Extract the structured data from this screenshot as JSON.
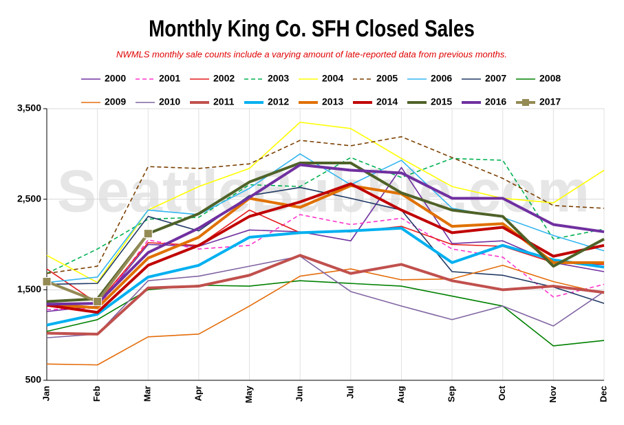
{
  "chart_data": {
    "type": "line",
    "title": "Monthly King Co. SFH Closed Sales",
    "subtitle": "NWMLS monthly sale counts include a varying amount of late-reported  data from previous months.",
    "watermark": "SeattleBubble.com",
    "categories": [
      "Jan",
      "Feb",
      "Mar",
      "Apr",
      "May",
      "Jun",
      "Jul",
      "Aug",
      "Sep",
      "Oct",
      "Nov",
      "Dec"
    ],
    "ylim": [
      500,
      3500
    ],
    "yticks": [
      {
        "value": 500,
        "label": "500"
      },
      {
        "value": 1500,
        "label": "1,500"
      },
      {
        "value": 2500,
        "label": "2,500"
      },
      {
        "value": 3500,
        "label": "3,500"
      }
    ],
    "grid": true,
    "legend": "top",
    "series": [
      {
        "name": "2000",
        "color": "#7030a0",
        "style": "solid",
        "values": [
          1260,
          1320,
          2000,
          1980,
          2160,
          2140,
          2040,
          2850,
          2010,
          2040,
          1800,
          1700
        ]
      },
      {
        "name": "2001",
        "color": "#ff33cc",
        "style": "dashed",
        "values": [
          1280,
          1300,
          2050,
          1950,
          1990,
          2330,
          2220,
          2290,
          1950,
          1860,
          1420,
          1560
        ]
      },
      {
        "name": "2002",
        "color": "#e41a1c",
        "style": "solid",
        "values": [
          1730,
          1350,
          2020,
          1990,
          2380,
          2130,
          2140,
          2200,
          2000,
          1980,
          1800,
          1780
        ]
      },
      {
        "name": "2003",
        "color": "#00b050",
        "style": "dashed",
        "values": [
          1680,
          1950,
          2280,
          2300,
          2660,
          2640,
          2960,
          2740,
          2950,
          2930,
          2060,
          2170
        ]
      },
      {
        "name": "2004",
        "color": "#ffff00",
        "style": "solid",
        "values": [
          1880,
          1580,
          2380,
          2640,
          2840,
          3350,
          3280,
          2950,
          2640,
          2510,
          2460,
          2820
        ]
      },
      {
        "name": "2005",
        "color": "#7b3f00",
        "style": "dashed",
        "values": [
          1680,
          1760,
          2860,
          2840,
          2890,
          3150,
          3090,
          3190,
          2960,
          2730,
          2430,
          2400
        ]
      },
      {
        "name": "2006",
        "color": "#33b5f0",
        "style": "solid",
        "values": [
          1580,
          1640,
          2380,
          2330,
          2620,
          3000,
          2660,
          2930,
          2400,
          2300,
          2100,
          1930
        ]
      },
      {
        "name": "2007",
        "color": "#1f3864",
        "style": "solid",
        "values": [
          1560,
          1570,
          2310,
          2150,
          2540,
          2630,
          2510,
          2380,
          1700,
          1660,
          1530,
          1350
        ]
      },
      {
        "name": "2008",
        "color": "#008000",
        "style": "solid",
        "values": [
          1040,
          1170,
          1500,
          1550,
          1540,
          1600,
          1570,
          1540,
          1430,
          1320,
          880,
          940
        ]
      },
      {
        "name": "2009",
        "color": "#e46c0a",
        "style": "solid",
        "values": [
          680,
          670,
          980,
          1010,
          1320,
          1650,
          1730,
          1610,
          1620,
          1770,
          1590,
          1460
        ]
      },
      {
        "name": "2010",
        "color": "#8064a2",
        "style": "solid",
        "values": [
          970,
          1010,
          1600,
          1650,
          1760,
          1870,
          1480,
          1320,
          1170,
          1320,
          1100,
          1480
        ]
      },
      {
        "name": "2011",
        "color": "#c0504d",
        "style": "thick",
        "values": [
          1020,
          1010,
          1520,
          1540,
          1660,
          1880,
          1680,
          1780,
          1600,
          1500,
          1540,
          1470
        ]
      },
      {
        "name": "2012",
        "color": "#00b0f0",
        "style": "thick",
        "values": [
          1110,
          1230,
          1640,
          1770,
          2080,
          2130,
          2150,
          2180,
          1800,
          1990,
          1830,
          1750
        ]
      },
      {
        "name": "2013",
        "color": "#e07000",
        "style": "thick",
        "values": [
          1340,
          1300,
          1850,
          2080,
          2510,
          2410,
          2650,
          2560,
          2200,
          2230,
          1800,
          1800
        ]
      },
      {
        "name": "2014",
        "color": "#c00000",
        "style": "thick",
        "values": [
          1330,
          1250,
          1770,
          1990,
          2310,
          2470,
          2670,
          2380,
          2130,
          2190,
          1870,
          1990
        ]
      },
      {
        "name": "2015",
        "color": "#4f6228",
        "style": "thick",
        "values": [
          1370,
          1400,
          2120,
          2340,
          2690,
          2900,
          2900,
          2570,
          2380,
          2310,
          1760,
          2060
        ]
      },
      {
        "name": "2016",
        "color": "#7030a0",
        "style": "thick",
        "values": [
          1340,
          1350,
          1910,
          2180,
          2520,
          2880,
          2820,
          2790,
          2510,
          2510,
          2220,
          2140
        ]
      },
      {
        "name": "2017",
        "color": "#948a54",
        "style": "thick-marker",
        "values": [
          1590,
          1370,
          2120,
          null,
          null,
          null,
          null,
          null,
          null,
          null,
          null,
          null
        ]
      }
    ]
  }
}
